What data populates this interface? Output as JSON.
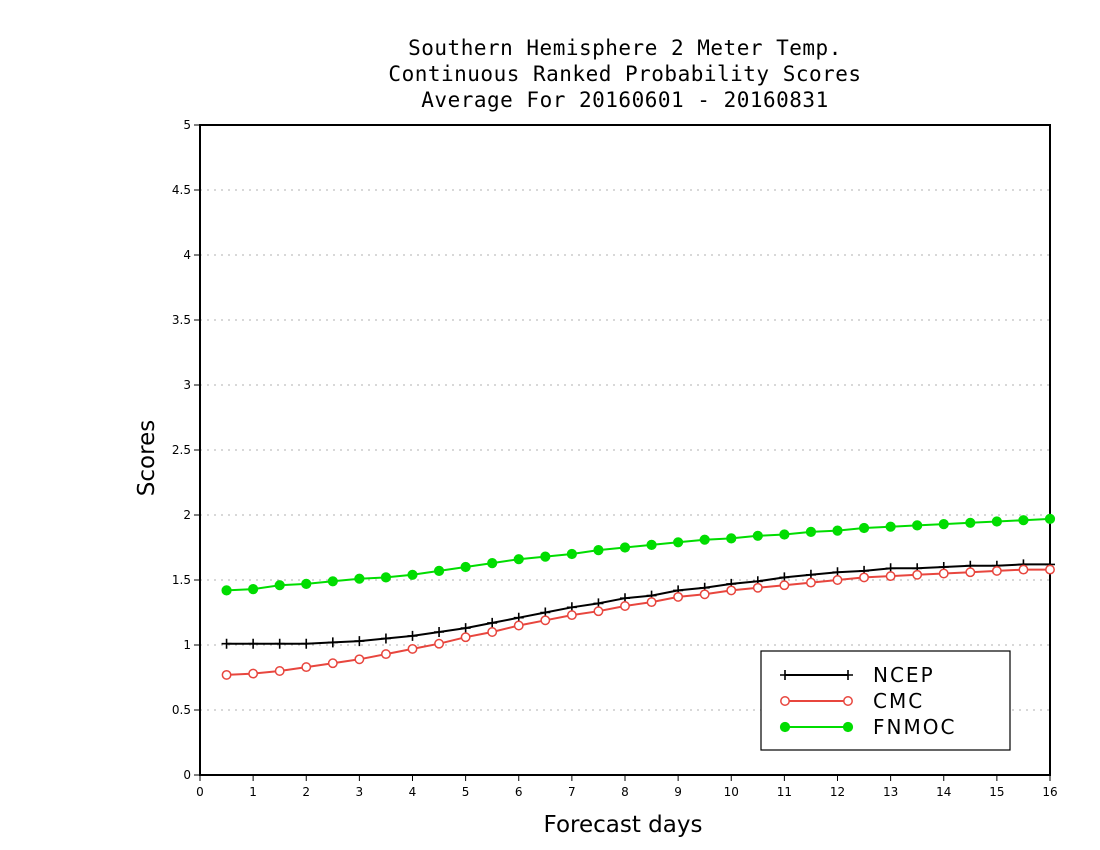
{
  "chart_data": {
    "type": "line",
    "title_lines": [
      "Southern Hemisphere 2 Meter Temp.",
      "Continuous Ranked Probability Scores",
      "Average For 20160601 - 20160831"
    ],
    "xlabel": "Forecast days",
    "ylabel": "Scores",
    "xlim": [
      0,
      16
    ],
    "ylim": [
      0,
      5
    ],
    "x_ticks": [
      "0",
      "1",
      "2",
      "3",
      "4",
      "5",
      "6",
      "7",
      "8",
      "9",
      "10",
      "11",
      "12",
      "13",
      "14",
      "15",
      "16"
    ],
    "y_ticks": [
      "0",
      "0.5",
      "1",
      "1.5",
      "2",
      "2.5",
      "3",
      "3.5",
      "4",
      "4.5",
      "5"
    ],
    "grid": true,
    "legend_position": "bottom-right",
    "x": [
      0.5,
      1,
      1.5,
      2,
      2.5,
      3,
      3.5,
      4,
      4.5,
      5,
      5.5,
      6,
      6.5,
      7,
      7.5,
      8,
      8.5,
      9,
      9.5,
      10,
      10.5,
      11,
      11.5,
      12,
      12.5,
      13,
      13.5,
      14,
      14.5,
      15,
      15.5,
      16
    ],
    "series": [
      {
        "name": "NCEP",
        "color": "#000000",
        "marker": "plus",
        "values": [
          1.01,
          1.01,
          1.01,
          1.01,
          1.02,
          1.03,
          1.05,
          1.07,
          1.1,
          1.13,
          1.17,
          1.21,
          1.25,
          1.29,
          1.32,
          1.36,
          1.38,
          1.42,
          1.44,
          1.47,
          1.49,
          1.52,
          1.54,
          1.56,
          1.57,
          1.59,
          1.59,
          1.6,
          1.61,
          1.61,
          1.62,
          1.62
        ]
      },
      {
        "name": "CMC",
        "color": "#e8463e",
        "marker": "open-circle",
        "values": [
          0.77,
          0.78,
          0.8,
          0.83,
          0.86,
          0.89,
          0.93,
          0.97,
          1.01,
          1.06,
          1.1,
          1.15,
          1.19,
          1.23,
          1.26,
          1.3,
          1.33,
          1.37,
          1.39,
          1.42,
          1.44,
          1.46,
          1.48,
          1.5,
          1.52,
          1.53,
          1.54,
          1.55,
          1.56,
          1.57,
          1.58,
          1.58
        ]
      },
      {
        "name": "FNMOC",
        "color": "#00dd00",
        "marker": "filled-circle",
        "values": [
          1.42,
          1.43,
          1.46,
          1.47,
          1.49,
          1.51,
          1.52,
          1.54,
          1.57,
          1.6,
          1.63,
          1.66,
          1.68,
          1.7,
          1.73,
          1.75,
          1.77,
          1.79,
          1.81,
          1.82,
          1.84,
          1.85,
          1.87,
          1.88,
          1.9,
          1.91,
          1.92,
          1.93,
          1.94,
          1.95,
          1.96,
          1.97
        ]
      }
    ]
  }
}
